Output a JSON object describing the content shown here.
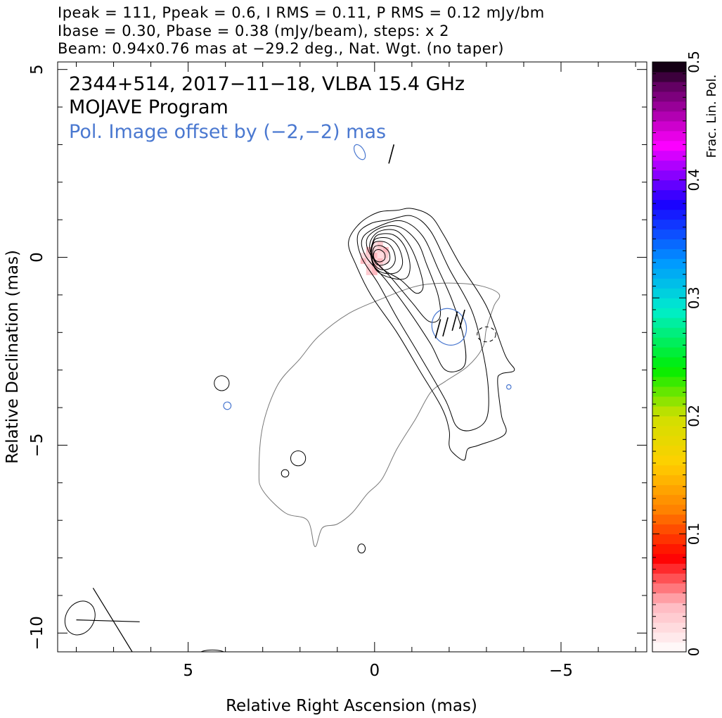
{
  "header": {
    "line1": "Ipeak = 111, Ppeak = 0.6, I RMS = 0.11, P RMS = 0.12 mJy/bm",
    "line2": "Ibase = 0.30, Pbase = 0.38 (mJy/beam), steps: x 2",
    "line3": "Beam: 0.94x0.76 mas at −29.2 deg., Nat. Wgt. (no taper)"
  },
  "annotation": {
    "source": "2344+514, 2017−11−18, VLBA 15.4 GHz",
    "program": "MOJAVE Program",
    "pol_offset": "Pol. Image offset by (−2,−2) mas",
    "pol_color": "#4a78d0"
  },
  "chart_data": {
    "type": "contour",
    "xlabel": "Relative Right Ascension (mas)",
    "ylabel": "Relative Declination (mas)",
    "xlim": [
      8.5,
      -7.3
    ],
    "ylim": [
      -10.5,
      5.2
    ],
    "x_reversed": true,
    "xticks": [
      {
        "value": 5,
        "label": "5"
      },
      {
        "value": 0,
        "label": "0"
      },
      {
        "value": -5,
        "label": "−5"
      }
    ],
    "yticks": [
      {
        "value": 5,
        "label": "5"
      },
      {
        "value": 0,
        "label": "0"
      },
      {
        "value": -5,
        "label": "−5"
      },
      {
        "value": -10,
        "label": "−10"
      }
    ],
    "stokes_i_contours": [
      {
        "id": "c1",
        "points": [
          [
            -0.6,
            1.25
          ],
          [
            -1.0,
            1.3
          ],
          [
            -1.5,
            1.1
          ],
          [
            -1.85,
            0.6
          ],
          [
            -2.3,
            -0.2
          ],
          [
            -3.0,
            -1.3
          ],
          [
            -3.5,
            -2.6
          ],
          [
            -3.75,
            -3.0
          ],
          [
            -3.4,
            -3.1
          ],
          [
            -3.3,
            -3.3
          ],
          [
            -3.4,
            -4.2
          ],
          [
            -3.5,
            -4.7
          ],
          [
            -2.8,
            -5.0
          ],
          [
            -2.5,
            -5.1
          ],
          [
            -2.4,
            -5.4
          ],
          [
            -2.1,
            -5.2
          ],
          [
            -2.0,
            -5.0
          ],
          [
            -2.0,
            -4.6
          ],
          [
            -1.8,
            -4.0
          ],
          [
            -1.2,
            -3.0
          ],
          [
            -0.6,
            -2.0
          ],
          [
            0.1,
            -1.0
          ],
          [
            0.5,
            -0.2
          ],
          [
            0.7,
            0.4
          ],
          [
            0.4,
            0.9
          ],
          [
            -0.1,
            1.2
          ]
        ]
      },
      {
        "id": "c2",
        "points": [
          [
            -0.4,
            1.0
          ],
          [
            -1.0,
            1.1
          ],
          [
            -1.5,
            0.7
          ],
          [
            -2.0,
            -0.3
          ],
          [
            -2.6,
            -1.4
          ],
          [
            -2.9,
            -2.5
          ],
          [
            -3.05,
            -3.5
          ],
          [
            -3.0,
            -4.3
          ],
          [
            -2.6,
            -4.6
          ],
          [
            -2.2,
            -4.5
          ],
          [
            -1.9,
            -3.8
          ],
          [
            -1.2,
            -2.6
          ],
          [
            -0.6,
            -1.6
          ],
          [
            -0.1,
            -0.7
          ],
          [
            0.35,
            0.0
          ],
          [
            0.45,
            0.6
          ],
          [
            0.1,
            0.9
          ]
        ]
      },
      {
        "id": "c3",
        "points": [
          [
            -0.3,
            0.9
          ],
          [
            -0.8,
            0.95
          ],
          [
            -1.3,
            0.55
          ],
          [
            -1.7,
            -0.3
          ],
          [
            -2.1,
            -1.2
          ],
          [
            -2.4,
            -2.2
          ],
          [
            -2.4,
            -2.9
          ],
          [
            -1.9,
            -3.0
          ],
          [
            -1.5,
            -2.3
          ],
          [
            -0.9,
            -1.4
          ],
          [
            -0.3,
            -0.6
          ],
          [
            0.25,
            0.05
          ],
          [
            0.3,
            0.55
          ]
        ]
      },
      {
        "id": "c4",
        "points": [
          [
            -0.2,
            0.8
          ],
          [
            -0.7,
            0.8
          ],
          [
            -1.15,
            0.4
          ],
          [
            -1.4,
            -0.2
          ],
          [
            -1.7,
            -1.0
          ],
          [
            -1.75,
            -1.6
          ],
          [
            -1.45,
            -1.7
          ],
          [
            -1.0,
            -1.2
          ],
          [
            -0.45,
            -0.55
          ],
          [
            0.1,
            0.05
          ],
          [
            0.2,
            0.5
          ]
        ]
      },
      {
        "id": "c5",
        "points": [
          [
            -0.15,
            0.7
          ],
          [
            -0.6,
            0.7
          ],
          [
            -0.95,
            0.3
          ],
          [
            -1.2,
            -0.3
          ],
          [
            -1.3,
            -0.8
          ],
          [
            -1.1,
            -0.95
          ],
          [
            -0.7,
            -0.6
          ],
          [
            -0.2,
            -0.3
          ],
          [
            0.1,
            0.1
          ],
          [
            0.1,
            0.45
          ]
        ]
      },
      {
        "id": "c6",
        "points": [
          [
            -0.1,
            0.6
          ],
          [
            -0.5,
            0.6
          ],
          [
            -0.8,
            0.3
          ],
          [
            -0.95,
            -0.2
          ],
          [
            -0.85,
            -0.55
          ],
          [
            -0.45,
            -0.55
          ],
          [
            -0.05,
            -0.35
          ],
          [
            0.1,
            0.05
          ],
          [
            0.05,
            0.4
          ]
        ]
      },
      {
        "id": "c7",
        "points": [
          [
            -0.05,
            0.5
          ],
          [
            -0.4,
            0.5
          ],
          [
            -0.65,
            0.25
          ],
          [
            -0.75,
            -0.15
          ],
          [
            -0.6,
            -0.4
          ],
          [
            -0.25,
            -0.42
          ],
          [
            0.0,
            -0.25
          ],
          [
            0.08,
            0.1
          ],
          [
            0.05,
            0.35
          ]
        ]
      },
      {
        "id": "c8",
        "points": [
          [
            0.0,
            0.4
          ],
          [
            -0.3,
            0.4
          ],
          [
            -0.5,
            0.2
          ],
          [
            -0.55,
            -0.1
          ],
          [
            -0.4,
            -0.3
          ],
          [
            -0.15,
            -0.32
          ],
          [
            0.03,
            -0.15
          ],
          [
            0.08,
            0.15
          ]
        ]
      },
      {
        "id": "c9",
        "points": [
          [
            0.0,
            0.28
          ],
          [
            -0.2,
            0.3
          ],
          [
            -0.38,
            0.15
          ],
          [
            -0.4,
            -0.08
          ],
          [
            -0.25,
            -0.2
          ],
          [
            -0.05,
            -0.18
          ],
          [
            0.05,
            0.05
          ]
        ]
      },
      {
        "id": "c10",
        "points": [
          [
            -0.02,
            0.18
          ],
          [
            -0.15,
            0.2
          ],
          [
            -0.27,
            0.1
          ],
          [
            -0.27,
            -0.05
          ],
          [
            -0.15,
            -0.12
          ],
          [
            -0.02,
            -0.08
          ],
          [
            0.03,
            0.05
          ]
        ]
      }
    ],
    "total_intensity_outline": [
      [
        -3.0,
        -0.8
      ],
      [
        -3.35,
        -1.0
      ],
      [
        -3.2,
        -1.3
      ],
      [
        -3.0,
        -1.9
      ],
      [
        -2.9,
        -2.4
      ],
      [
        -2.5,
        -2.9
      ],
      [
        -1.9,
        -3.3
      ],
      [
        -1.5,
        -3.6
      ],
      [
        -1.1,
        -4.3
      ],
      [
        -0.6,
        -5.1
      ],
      [
        -0.2,
        -5.9
      ],
      [
        0.2,
        -6.3
      ],
      [
        0.6,
        -6.8
      ],
      [
        1.0,
        -7.1
      ],
      [
        1.4,
        -7.2
      ],
      [
        1.6,
        -7.7
      ],
      [
        1.8,
        -7.0
      ],
      [
        2.4,
        -6.8
      ],
      [
        3.0,
        -6.2
      ],
      [
        3.1,
        -5.7
      ],
      [
        3.0,
        -4.5
      ],
      [
        2.6,
        -3.4
      ],
      [
        2.0,
        -2.7
      ],
      [
        1.5,
        -2.1
      ],
      [
        0.7,
        -1.5
      ],
      [
        -0.2,
        -1.1
      ],
      [
        -1.0,
        -0.8
      ],
      [
        -1.6,
        -0.7
      ],
      [
        -2.4,
        -0.7
      ]
    ],
    "isolated_contours": [
      {
        "id": "blob-a",
        "x": 4.1,
        "y": -3.35,
        "rx": 0.2,
        "ry": 0.2
      },
      {
        "id": "blob-b",
        "x": 2.05,
        "y": -5.35,
        "rx": 0.2,
        "ry": 0.2
      },
      {
        "id": "blob-c",
        "x": 2.4,
        "y": -5.75,
        "rx": 0.1,
        "ry": 0.1
      },
      {
        "id": "blob-d",
        "x": 0.35,
        "y": -7.75,
        "rx": 0.1,
        "ry": 0.12
      },
      {
        "id": "blob-e",
        "x": 4.35,
        "y": -10.55,
        "rx": 0.35,
        "ry": 0.1
      }
    ],
    "negative_contours": [
      {
        "id": "neg-a",
        "x": -3.0,
        "y": -2.05,
        "rx": 0.25,
        "ry": 0.2
      }
    ],
    "polarized_contours": [
      {
        "id": "pol-a",
        "x": -2.0,
        "y": -1.85,
        "rx": 0.45,
        "ry": 0.5
      },
      {
        "id": "pol-b",
        "x": 0.4,
        "y": 2.8,
        "rx": 0.12,
        "ry": 0.22
      },
      {
        "id": "pol-c",
        "x": 3.95,
        "y": -3.95,
        "rx": 0.1,
        "ry": 0.1
      },
      {
        "id": "pol-d",
        "x": -3.6,
        "y": -3.45,
        "rx": 0.06,
        "ry": 0.06
      }
    ],
    "evpa_ticks": [
      {
        "x": -1.7,
        "y": -1.9,
        "angle": 15
      },
      {
        "x": -1.9,
        "y": -1.85,
        "angle": 15
      },
      {
        "x": -2.15,
        "y": -1.7,
        "angle": 15
      },
      {
        "x": -2.35,
        "y": -1.65,
        "angle": 15
      },
      {
        "x": -0.45,
        "y": 2.75,
        "angle": 15
      }
    ],
    "fractional_pol_region": {
      "x": 0.0,
      "y": 0.05,
      "level": 0.03
    },
    "beam": {
      "x": 7.9,
      "y": -9.6,
      "major": 0.94,
      "minor": 0.76,
      "pa": -29.2
    },
    "colorbar": {
      "label": "Frac. Lin. Pol.",
      "range": [
        0,
        0.5
      ],
      "ticks": [
        {
          "value": 0,
          "label": "0"
        },
        {
          "value": 0.1,
          "label": "0.1"
        },
        {
          "value": 0.2,
          "label": "0.2"
        },
        {
          "value": 0.3,
          "label": "0.3"
        },
        {
          "value": 0.4,
          "label": "0.4"
        },
        {
          "value": 0.5,
          "label": "0.5"
        }
      ],
      "stops": [
        {
          "v": 0.0,
          "color": "#ffffff"
        },
        {
          "v": 0.04,
          "color": "#ffb9c0"
        },
        {
          "v": 0.08,
          "color": "#ff0000"
        },
        {
          "v": 0.12,
          "color": "#ff8000"
        },
        {
          "v": 0.16,
          "color": "#ffd000"
        },
        {
          "v": 0.2,
          "color": "#d0e000"
        },
        {
          "v": 0.24,
          "color": "#00ee00"
        },
        {
          "v": 0.29,
          "color": "#00eecc"
        },
        {
          "v": 0.33,
          "color": "#0099ff"
        },
        {
          "v": 0.38,
          "color": "#1a00ff"
        },
        {
          "v": 0.43,
          "color": "#ff00ff"
        },
        {
          "v": 0.48,
          "color": "#600060"
        },
        {
          "v": 0.5,
          "color": "#000000"
        }
      ]
    }
  }
}
